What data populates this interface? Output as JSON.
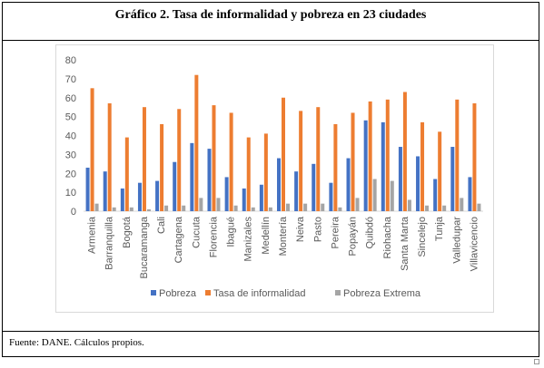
{
  "page": {
    "title": "Gráfico 2. Tasa de informalidad y pobreza en 23 ciudades",
    "source": "Fuente: DANE. Cálculos propios."
  },
  "chart_data": {
    "type": "bar",
    "categories": [
      "Armenia",
      "Barranquilla",
      "Bogotá",
      "Bucaramanga",
      "Cali",
      "Cartagena",
      "Cucuta",
      "Florencia",
      "Ibagué",
      "Manizales",
      "Medellín",
      "Montería",
      "Neiva",
      "Pasto",
      "Pereira",
      "Popayán",
      "Quibdó",
      "Riohacha",
      "Santa Marta",
      "Sincelejo",
      "Tunja",
      "Valledupar",
      "Villavicencio"
    ],
    "series": [
      {
        "name": "Pobreza",
        "color": "#4472c4",
        "values": [
          23,
          21,
          12,
          15,
          16,
          26,
          36,
          33,
          18,
          12,
          14,
          28,
          21,
          25,
          15,
          28,
          48,
          47,
          34,
          29,
          17,
          34,
          18
        ]
      },
      {
        "name": "Tasa de informalidad",
        "color": "#ed7d31",
        "values": [
          65,
          57,
          39,
          55,
          46,
          54,
          72,
          56,
          52,
          39,
          41,
          60,
          53,
          55,
          46,
          52,
          58,
          59,
          63,
          47,
          42,
          59,
          57
        ]
      },
      {
        "name": "Pobreza Extrema",
        "color": "#a5a5a5",
        "values": [
          4,
          2,
          2,
          1,
          3,
          3,
          7,
          7,
          3,
          2,
          2,
          4,
          4,
          4,
          2,
          7,
          17,
          16,
          6,
          3,
          3,
          7,
          4
        ]
      }
    ],
    "yticks": [
      "0",
      "10",
      "20",
      "30",
      "40",
      "50",
      "60",
      "70",
      "80"
    ],
    "ylim": [
      0,
      80
    ],
    "grid": false,
    "legend_position": "bottom"
  }
}
